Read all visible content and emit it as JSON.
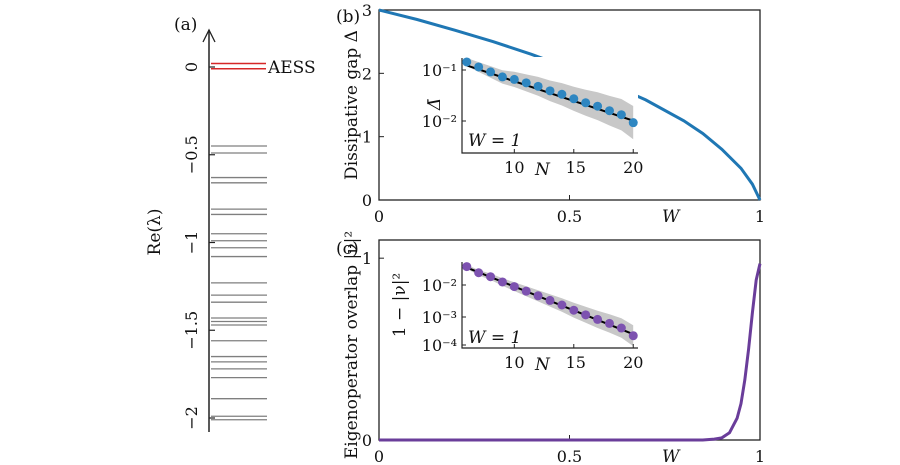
{
  "chart_data": [
    {
      "panel": "(a)",
      "type": "spectrum",
      "ylabel": "Re(λ)",
      "ylim": [
        -2.05,
        0.15
      ],
      "yticks": [
        0,
        -0.5,
        -1,
        -1.5,
        -2
      ],
      "ytick_labels": [
        "0",
        "−0.5",
        "−1",
        "−1.5",
        "−2"
      ],
      "aess_label": "AESS",
      "aess_values": [
        -0.01,
        0.02
      ],
      "aess_color": "#d62728",
      "line_color": "#7f7f7f",
      "levels": [
        -0.45,
        -0.49,
        -0.63,
        -0.66,
        -0.81,
        -0.84,
        -0.95,
        -0.99,
        -1.03,
        -1.08,
        -1.23,
        -1.3,
        -1.34,
        -1.43,
        -1.45,
        -1.47,
        -1.56,
        -1.65,
        -1.68,
        -1.72,
        -1.77,
        -1.89,
        -1.99,
        -2.01
      ]
    },
    {
      "panel": "(b)",
      "type": "line",
      "xlabel": "W",
      "ylabel": "Dissipative gap Δ",
      "xlim": [
        0,
        1
      ],
      "ylim": [
        0,
        3
      ],
      "xticks": [
        0,
        0.5,
        1
      ],
      "xtick_labels": [
        "0",
        "0.5",
        "1"
      ],
      "yticks": [
        0,
        1,
        2,
        3
      ],
      "ytick_labels": [
        "0",
        "1",
        "2",
        "3"
      ],
      "color": "#1f77b4",
      "series": [
        {
          "name": "Δ(W)",
          "x": [
            0,
            0.1,
            0.2,
            0.3,
            0.4,
            0.5,
            0.6,
            0.7,
            0.8,
            0.85,
            0.9,
            0.95,
            0.98,
            1.0
          ],
          "y": [
            3.0,
            2.85,
            2.68,
            2.5,
            2.3,
            2.08,
            1.85,
            1.58,
            1.25,
            1.05,
            0.8,
            0.5,
            0.25,
            0.0
          ]
        }
      ],
      "inset": {
        "type": "scatter",
        "xlabel": "N",
        "ylabel": "Δ̄",
        "scale": "log-y",
        "annotation": "W = 1",
        "xticks": [
          10,
          15,
          20
        ],
        "xtick_labels": [
          "10",
          "15",
          "20"
        ],
        "ytick_labels": [
          "10⁻¹",
          "10⁻²"
        ],
        "ylim_log10": [
          -2.55,
          -0.7
        ],
        "x": [
          6,
          7,
          8,
          9,
          10,
          11,
          12,
          13,
          14,
          15,
          16,
          17,
          18,
          19,
          20
        ],
        "y_log10": [
          -0.78,
          -0.88,
          -0.98,
          -1.08,
          -1.13,
          -1.2,
          -1.27,
          -1.36,
          -1.43,
          -1.52,
          -1.6,
          -1.67,
          -1.76,
          -1.84,
          -2.0
        ],
        "fit_log10": [
          -0.85,
          -1.96
        ]
      }
    },
    {
      "panel": "(c)",
      "type": "line",
      "xlabel": "W",
      "ylabel": "Eigenoperator overlap |ν|²",
      "xlim": [
        0,
        1
      ],
      "ylim": [
        0,
        1.1
      ],
      "xticks": [
        0,
        0.5,
        1
      ],
      "xtick_labels": [
        "0",
        "0.5",
        "1"
      ],
      "yticks": [
        0,
        1
      ],
      "ytick_labels": [
        "0",
        "1"
      ],
      "color": "#6a3d9a",
      "series": [
        {
          "name": "|ν|²(W)",
          "x": [
            0,
            0.8,
            0.85,
            0.88,
            0.9,
            0.92,
            0.94,
            0.95,
            0.96,
            0.97,
            0.98,
            0.99,
            1.0
          ],
          "y": [
            0,
            0,
            0.0,
            0.005,
            0.012,
            0.04,
            0.12,
            0.2,
            0.33,
            0.5,
            0.7,
            0.88,
            0.97
          ]
        }
      ],
      "inset": {
        "type": "scatter",
        "xlabel": "N",
        "ylabel": "1 − |ν|²",
        "scale": "log-y",
        "annotation": "W = 1",
        "xticks": [
          10,
          15,
          20
        ],
        "xtick_labels": [
          "10",
          "15",
          "20"
        ],
        "ytick_labels": [
          "10⁻²",
          "10⁻³",
          "10⁻⁴"
        ],
        "ylim_log10": [
          -4.2,
          -1.4
        ],
        "x": [
          6,
          7,
          8,
          9,
          10,
          11,
          12,
          13,
          14,
          15,
          16,
          17,
          18,
          19,
          20
        ],
        "y_log10": [
          -1.55,
          -1.75,
          -1.88,
          -2.05,
          -2.2,
          -2.35,
          -2.5,
          -2.65,
          -2.8,
          -2.97,
          -3.12,
          -3.27,
          -3.4,
          -3.55,
          -3.8
        ],
        "fit_log10": [
          -1.58,
          -3.75
        ]
      }
    }
  ],
  "labels": {
    "panel_a": "(a)",
    "panel_b": "(b)",
    "panel_c": "(c)",
    "a_ylabel": "Re(λ)",
    "b_ylabel": "Dissipative gap Δ",
    "c_ylabel": "Eigenoperator overlap |ν|²",
    "b_xlabel": "W",
    "c_xlabel": "W",
    "inset_b_ylabel": "Δ̄",
    "inset_c_ylabel": "1 − |ν|²",
    "inset_xlabel": "N",
    "inset_annotation": "W = 1",
    "aess": "AESS"
  }
}
